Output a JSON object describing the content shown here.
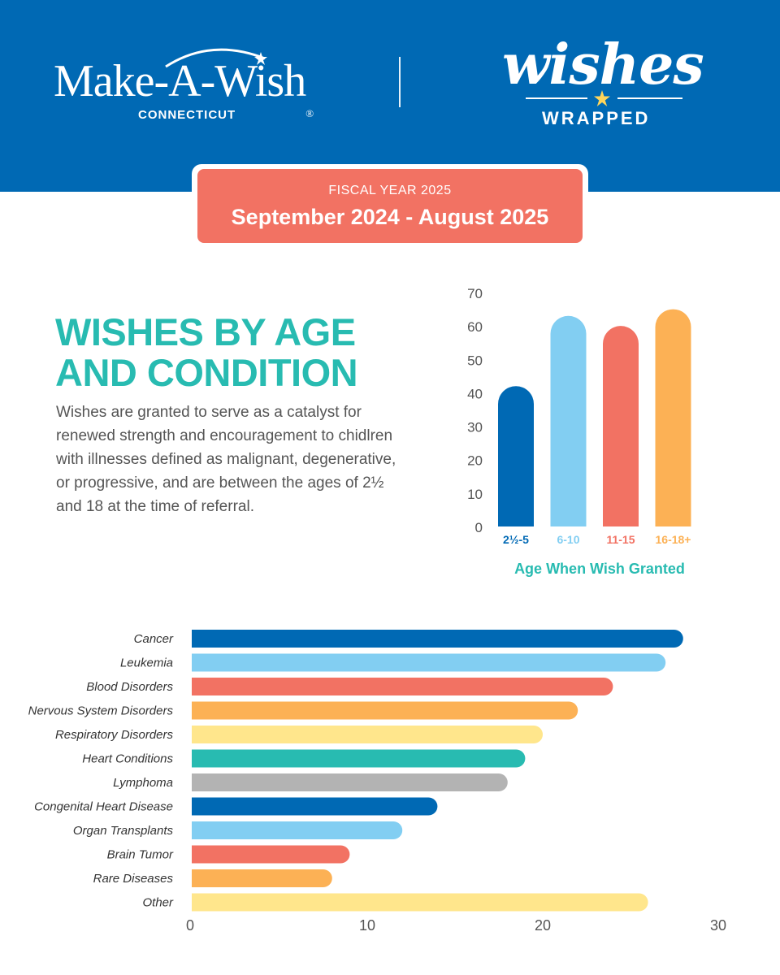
{
  "header": {
    "logo_text": "Make-A-Wish",
    "logo_registered": "®",
    "logo_region": "CONNECTICUT",
    "brand_title": "wishes",
    "brand_subtitle": "WRAPPED"
  },
  "banner": {
    "top": "FISCAL  YEAR 2025",
    "main": "September 2024 - August 2025"
  },
  "section": {
    "heading_line1": "WISHES BY AGE",
    "heading_line2": "AND CONDITION",
    "description": "Wishes are granted to serve as a catalyst for renewed strength and encouragement to chidlren with illnesses defined as malignant, degenerative, or progressive, and are between the ages of 2½ and 18 at the time of referral."
  },
  "colors": {
    "brand_blue": "#0069b4",
    "light_blue": "#82cef2",
    "coral": "#f27263",
    "orange": "#fcb155",
    "yellow": "#ffe68c",
    "teal": "#28bbb1",
    "gray": "#b3b3b3"
  },
  "chart_data": [
    {
      "type": "bar",
      "orientation": "vertical",
      "categories": [
        "2½-5",
        "6-10",
        "11-15",
        "16-18+"
      ],
      "values": [
        42,
        63,
        60,
        65
      ],
      "colors": [
        "#0069b4",
        "#82cef2",
        "#f27263",
        "#fcb155"
      ],
      "xlabel": "Age When Wish Granted",
      "ylim": [
        0,
        70
      ],
      "yticks": [
        0,
        10,
        20,
        30,
        40,
        50,
        60,
        70
      ],
      "grid": false
    },
    {
      "type": "bar",
      "orientation": "horizontal",
      "categories": [
        "Cancer",
        "Leukemia",
        "Blood Disorders",
        "Nervous System Disorders",
        "Respiratory Disorders",
        "Heart Conditions",
        "Lymphoma",
        "Congenital Heart Disease",
        "Organ Transplants",
        "Brain Tumor",
        "Rare Diseases",
        "Other"
      ],
      "values": [
        28,
        27,
        24,
        22,
        20,
        19,
        18,
        14,
        12,
        9,
        8,
        26
      ],
      "colors": [
        "#0069b4",
        "#82cef2",
        "#f27263",
        "#fcb155",
        "#ffe68c",
        "#28bbb1",
        "#b3b3b3",
        "#0069b4",
        "#82cef2",
        "#f27263",
        "#fcb155",
        "#ffe68c"
      ],
      "xlim": [
        0,
        30
      ],
      "xticks": [
        0,
        10,
        20,
        30
      ],
      "grid": false
    }
  ]
}
